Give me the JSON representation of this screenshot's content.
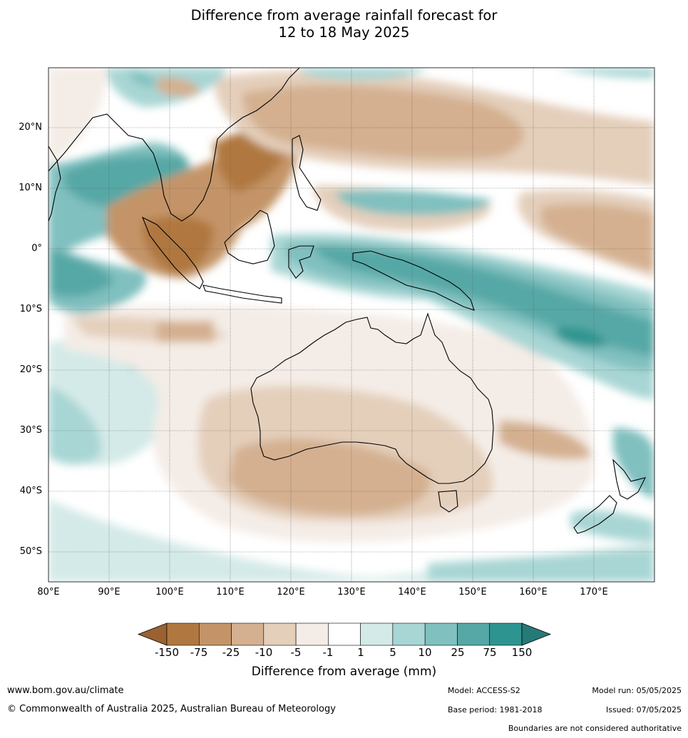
{
  "title": {
    "line1": "Difference from average rainfall forecast for",
    "line2": "12 to 18 May 2025"
  },
  "map": {
    "lat_labels": [
      "20°N",
      "10°N",
      "0°",
      "10°S",
      "20°S",
      "30°S",
      "40°S",
      "50°S"
    ],
    "lon_labels": [
      "80°E",
      "90°E",
      "100°E",
      "110°E",
      "120°E",
      "130°E",
      "140°E",
      "150°E",
      "160°E",
      "170°E"
    ],
    "extent": {
      "lon": [
        80,
        180
      ],
      "lat": [
        -55,
        30
      ]
    },
    "gridlines": true
  },
  "colorbar": {
    "ticks": [
      "-150",
      "-75",
      "-25",
      "-10",
      "-5",
      "-1",
      "1",
      "5",
      "10",
      "25",
      "75",
      "150"
    ],
    "colors": [
      "#9a6232",
      "#b07840",
      "#c49468",
      "#d4b090",
      "#e4cfbb",
      "#f4ece6",
      "#ffffff",
      "#d4eae8",
      "#a8d6d4",
      "#80c0bf",
      "#56a8a6",
      "#2e9490",
      "#257a77"
    ],
    "label": "Difference from average (mm)"
  },
  "footer": {
    "website": "www.bom.gov.au/climate",
    "copyright": "© Commonwealth of Australia 2025, Australian Bureau of Meteorology",
    "model": "Model: ACCESS-S2",
    "base_period": "Base period: 1981-2018",
    "model_run": "Model run: 05/05/2025",
    "issued": "Issued: 07/05/2025",
    "disclaimer": "Boundaries are not considered authoritative"
  }
}
